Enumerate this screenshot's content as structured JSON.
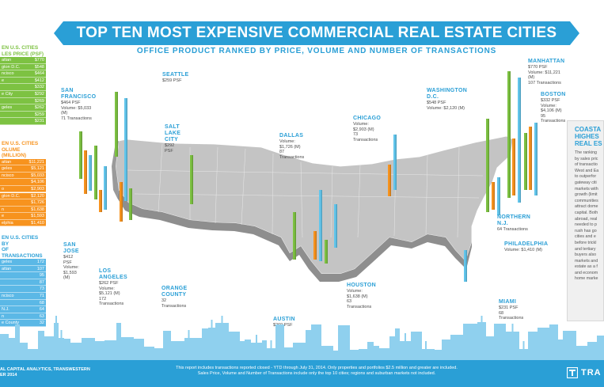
{
  "title": "TOP TEN MOST EXPENSIVE COMMERCIAL REAL ESTATE CITIES",
  "subtitle": "OFFICE PRODUCT RANKED BY PRICE, VOLUME AND NUMBER OF TRANSACTIONS",
  "colors": {
    "blue": "#2a9fd6",
    "green": "#7dc242",
    "orange": "#f7931e",
    "cyan": "#62c6ec",
    "map": "#bfbfbf",
    "skyline": "#8fd0ee",
    "footer": "#2a9fd6"
  },
  "side": {
    "price_head": [
      "EN U.S. CITIES",
      "LES PRICE (PSF)"
    ],
    "price_rows": [
      [
        "attan",
        "$770"
      ],
      [
        "gton D.C.",
        "$548"
      ],
      [
        "ncisco",
        "$464"
      ],
      [
        "e",
        "$412"
      ],
      [
        "",
        "$332"
      ],
      [
        "e City",
        "$292"
      ],
      [
        "",
        "$269"
      ],
      [
        "geles",
        "$262"
      ],
      [
        "",
        "$259"
      ],
      [
        "",
        "$231"
      ]
    ],
    "volume_head": [
      "EN U.S. CITIES",
      "OLUME (MILLION)"
    ],
    "volume_rows": [
      [
        "attan",
        "$11,221"
      ],
      [
        "geles",
        "$5,121"
      ],
      [
        "ncisco",
        "$5,033"
      ],
      [
        "",
        "$4,106"
      ],
      [
        "o",
        "$2,903"
      ],
      [
        "gton D.C.",
        "$2,120"
      ],
      [
        "",
        "$1,726"
      ],
      [
        "n",
        "$1,638"
      ],
      [
        "e",
        "$1,593"
      ],
      [
        "elphia",
        "$1,410"
      ]
    ],
    "trans_head": [
      "EN U.S. CITIES BY",
      "OF TRANSACTIONS"
    ],
    "trans_rows": [
      [
        "geles",
        "172"
      ],
      [
        "attan",
        "107"
      ],
      [
        "",
        "95"
      ],
      [
        "",
        "87"
      ],
      [
        "",
        "73"
      ],
      [
        "ncisco",
        "71"
      ],
      [
        "",
        "68"
      ],
      [
        "N.J.",
        "64"
      ],
      [
        "n",
        "63"
      ],
      [
        "e County",
        "32"
      ]
    ]
  },
  "cities": [
    {
      "name": "SEATTLE",
      "lines": [
        "$259 PSF"
      ]
    },
    {
      "name": "SAN FRANCISCO",
      "lines": [
        "$464 PSF",
        "Volume: $5,033 (M)",
        "71 Transactions"
      ]
    },
    {
      "name": "SALT LAKE CITY",
      "lines": [
        "$292 PSF"
      ]
    },
    {
      "name": "SAN JOSE",
      "lines": [
        "$412 PSF",
        "Volume: $1,593 (M)"
      ]
    },
    {
      "name": "LOS ANGELES",
      "lines": [
        "$262 PSF",
        "Volume: $5,121 (M)",
        "172 Transactions"
      ]
    },
    {
      "name": "ORANGE COUNTY",
      "lines": [
        "32 Transactions"
      ]
    },
    {
      "name": "DALLAS",
      "lines": [
        "Volume: $1,726 (M)",
        "87 Transactions"
      ]
    },
    {
      "name": "AUSTIN",
      "lines": [
        "$269 PSF"
      ]
    },
    {
      "name": "HOUSTON",
      "lines": [
        "Volume: $1,638 (M)",
        "63 Transactions"
      ]
    },
    {
      "name": "CHICAGO",
      "lines": [
        "Volume: $2,903 (M)",
        "73 Transactions"
      ]
    },
    {
      "name": "WASHINGTON D.C.",
      "lines": [
        "$548 PSF",
        "Volume: $2,120 (M)"
      ]
    },
    {
      "name": "MANHATTAN",
      "lines": [
        "$770 PSF",
        "Volume: $11,221 (M)",
        "107 Transactions"
      ]
    },
    {
      "name": "BOSTON",
      "lines": [
        "$332 PSF",
        "Volume: $4,106 (M)",
        "95 Transactions"
      ]
    },
    {
      "name": "NORTHERN N.J.",
      "lines": [
        "64 Transactions"
      ]
    },
    {
      "name": "PHILADELPHIA",
      "lines": [
        "Volume: $1,410 (M)"
      ]
    },
    {
      "name": "MIAMI",
      "lines": [
        "$231 PSF",
        "68 Transactions"
      ]
    }
  ],
  "callout": {
    "head": [
      "COASTA",
      "HIGHES",
      "REAL ES"
    ],
    "body": [
      "The ranking",
      "by sales pric",
      "of transactio",
      "West and Ea",
      "to outperfor",
      "gateway citi",
      "markets with",
      "growth (limit",
      "communities",
      "attract dome",
      "capital. Both",
      "abroad, real",
      "needed to p",
      "rush has go",
      "cities and e",
      "before trickl",
      "and tertiary",
      "buyers also",
      "markets and",
      "estate as a f",
      "and econom",
      "home marke"
    ]
  },
  "footnote": [
    "This report includes transactions reported closed - YTD through July 31, 2014. Only properties and portfolios $2.5 million and greater are included.",
    "Sales Price, Volume and Number of Transactions include only the top 10 cities; regions and suburban markets not included."
  ],
  "source": [
    "AL CAPITAL ANALYTICS, TRANSWESTERN",
    "ER 2014"
  ],
  "logo_text": "TRA"
}
